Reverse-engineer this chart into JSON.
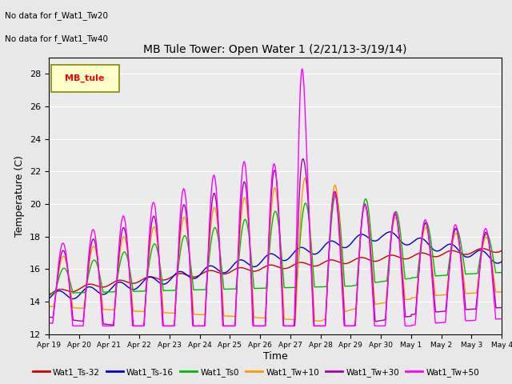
{
  "title": "MB Tule Tower: Open Water 1 (2/21/13-3/19/14)",
  "xlabel": "Time",
  "ylabel": "Temperature (C)",
  "annotations": [
    "No data for f_Wat1_Tw20",
    "No data for f_Wat1_Tw40"
  ],
  "legend_label": "MB_tule",
  "ylim": [
    12,
    29
  ],
  "yticks": [
    12,
    14,
    16,
    18,
    20,
    22,
    24,
    26,
    28
  ],
  "xtick_labels": [
    "Apr 19",
    "Apr 20",
    "Apr 21",
    "Apr 22",
    "Apr 23",
    "Apr 24",
    "Apr 25",
    "Apr 26",
    "Apr 27",
    "Apr 28",
    "Apr 29",
    "Apr 30",
    "May 1",
    "May 2",
    "May 3",
    "May 4"
  ],
  "series_colors": {
    "Wat1_Ts-32": "#cc0000",
    "Wat1_Ts-16": "#0000cc",
    "Wat1_Ts0": "#00bb00",
    "Wat1_Tw+10": "#ff9900",
    "Wat1_Tw+30": "#aa00aa",
    "Wat1_Tw+50": "#ff00ff"
  },
  "bg_color": "#e8e8e8",
  "plot_bg": "#ebebeb"
}
